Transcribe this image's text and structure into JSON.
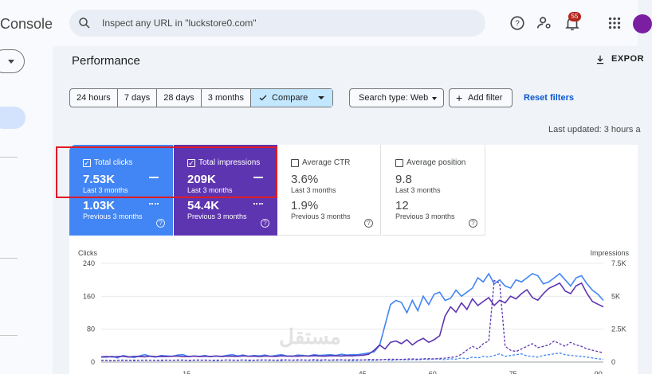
{
  "app": {
    "name": "Console"
  },
  "search": {
    "placeholder": "Inspect any URL in \"luckstore0.com\""
  },
  "header": {
    "notification_count": "55"
  },
  "page": {
    "title": "Performance",
    "export_label": "EXPOR",
    "last_updated": "Last updated: 3 hours a"
  },
  "date_range": {
    "options": [
      "24 hours",
      "7 days",
      "28 days",
      "3 months"
    ],
    "compare_label": "Compare"
  },
  "filters": {
    "search_type": "Search type: Web",
    "add_filter": "Add filter",
    "reset": "Reset filters"
  },
  "metrics": [
    {
      "label": "Total clicks",
      "value": "7.53K",
      "period": "Last 3 months",
      "prev_value": "1.03K",
      "prev_period": "Previous 3 months",
      "checked": true,
      "color": "#4285f4"
    },
    {
      "label": "Total impressions",
      "value": "209K",
      "period": "Last 3 months",
      "prev_value": "54.4K",
      "prev_period": "Previous 3 months",
      "checked": true,
      "color": "#5e35b1"
    },
    {
      "label": "Average CTR",
      "value": "3.6%",
      "period": "Last 3 months",
      "prev_value": "1.9%",
      "prev_period": "Previous 3 months",
      "checked": false
    },
    {
      "label": "Average position",
      "value": "9.8",
      "period": "Last 3 months",
      "prev_value": "12",
      "prev_period": "Previous 3 months",
      "checked": false
    }
  ],
  "watermark": "مستقل",
  "chart_data": {
    "type": "line",
    "left_axis": {
      "label": "Clicks",
      "ticks": [
        "240",
        "160",
        "80",
        "0"
      ],
      "range": [
        0,
        240
      ]
    },
    "right_axis": {
      "label": "Impressions",
      "ticks": [
        "7.5K",
        "5K",
        "2.5K",
        "0"
      ],
      "range": [
        0,
        7500
      ]
    },
    "x_ticks": [
      "15",
      "45",
      "60",
      "75",
      "90"
    ],
    "series": [
      {
        "style": "solid",
        "axis": "left",
        "color": "#4285f4",
        "values": [
          12,
          12,
          14,
          10,
          16,
          13,
          11,
          15,
          18,
          14,
          12,
          16,
          15,
          14,
          17,
          18,
          13,
          15,
          14,
          16,
          13,
          15,
          14,
          16,
          18,
          15,
          17,
          14,
          16,
          15,
          17,
          14,
          16,
          18,
          15,
          14,
          17,
          16,
          15,
          18,
          16,
          17,
          18,
          16,
          19,
          17,
          18,
          18,
          20,
          22,
          25,
          40,
          90,
          140,
          150,
          145,
          120,
          150,
          125,
          160,
          140,
          165,
          170,
          150,
          155,
          175,
          160,
          170,
          180,
          205,
          195,
          215,
          190,
          200,
          185,
          180,
          200,
          195,
          205,
          215,
          210,
          190,
          195,
          205,
          215,
          200,
          185,
          205,
          210,
          190,
          175,
          165,
          150
        ]
      },
      {
        "style": "solid",
        "axis": "right",
        "color": "#5e35b1",
        "values": [
          400,
          420,
          390,
          410,
          440,
          380,
          430,
          420,
          400,
          450,
          410,
          430,
          420,
          440,
          460,
          410,
          430,
          450,
          420,
          440,
          430,
          460,
          420,
          450,
          440,
          430,
          470,
          440,
          450,
          420,
          460,
          440,
          430,
          470,
          450,
          460,
          440,
          470,
          450,
          480,
          460,
          450,
          470,
          480,
          460,
          490,
          470,
          500,
          520,
          600,
          900,
          1300,
          1000,
          1500,
          1600,
          1400,
          1700,
          1300,
          1600,
          1800,
          1500,
          1700,
          2000,
          3500,
          4200,
          3800,
          4500,
          4000,
          4800,
          4300,
          4600,
          4900,
          4300,
          4700,
          4500,
          5000,
          4800,
          5200,
          5500,
          4900,
          4700,
          5200,
          5600,
          5800,
          6000,
          5400,
          5200,
          5800,
          6000,
          5200,
          4600,
          4400,
          4200
        ]
      },
      {
        "style": "dashed",
        "axis": "left",
        "color": "#4285f4",
        "values": [
          4,
          4,
          3,
          4,
          5,
          4,
          3,
          4,
          5,
          4,
          4,
          3,
          5,
          4,
          4,
          5,
          3,
          4,
          4,
          5,
          4,
          3,
          4,
          5,
          4,
          4,
          5,
          3,
          4,
          4,
          5,
          4,
          4,
          3,
          5,
          4,
          4,
          5,
          4,
          4,
          3,
          5,
          4,
          4,
          5,
          4,
          3,
          4,
          5,
          4,
          4,
          5,
          6,
          4,
          5,
          6,
          5,
          6,
          5,
          7,
          6,
          8,
          7,
          6,
          8,
          7,
          10,
          8,
          12,
          10,
          14,
          12,
          16,
          20,
          14,
          16,
          18,
          20,
          15,
          14,
          12,
          16,
          18,
          20,
          22,
          18,
          16,
          15,
          14,
          12,
          10,
          8,
          7
        ]
      },
      {
        "style": "dashed",
        "axis": "right",
        "color": "#5e35b1",
        "values": [
          120,
          130,
          110,
          140,
          120,
          130,
          150,
          120,
          140,
          130,
          120,
          150,
          140,
          130,
          160,
          140,
          130,
          150,
          160,
          140,
          130,
          150,
          140,
          160,
          150,
          140,
          160,
          150,
          140,
          170,
          150,
          160,
          140,
          170,
          160,
          150,
          170,
          160,
          150,
          180,
          160,
          170,
          150,
          180,
          170,
          160,
          180,
          170,
          160,
          200,
          190,
          180,
          200,
          220,
          210,
          200,
          230,
          240,
          220,
          250,
          260,
          240,
          280,
          300,
          350,
          400,
          600,
          900,
          1200,
          1000,
          1400,
          1600,
          6200,
          6000,
          1200,
          900,
          800,
          1000,
          1200,
          1400,
          1100,
          1200,
          1300,
          1600,
          1400,
          1200,
          1500,
          1300,
          1200,
          1000,
          900,
          800,
          700
        ]
      }
    ]
  }
}
